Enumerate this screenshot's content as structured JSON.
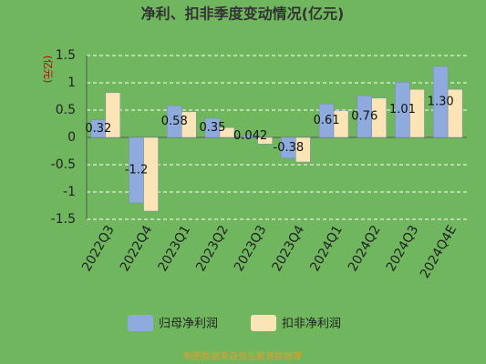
{
  "chart_data": {
    "type": "bar",
    "title": "净利、扣非季度变动情况(亿元)",
    "y_label": "(亿元)",
    "categories": [
      "2022Q3",
      "2022Q4",
      "2023Q1",
      "2023Q2",
      "2023Q3",
      "2023Q4",
      "2024Q1",
      "2024Q2",
      "2024Q3",
      "2024Q4E"
    ],
    "series": [
      {
        "name": "归母净利润",
        "color": "#8faadc",
        "values": [
          0.32,
          -1.2,
          0.58,
          0.35,
          0.042,
          -0.38,
          0.61,
          0.76,
          1.01,
          1.3
        ],
        "value_labels": [
          "0.32",
          "-1.2",
          "0.58",
          "0.35",
          "0.042",
          "-0.38",
          "0.61",
          "0.76",
          "1.01",
          "1.30"
        ]
      },
      {
        "name": "扣非净利润",
        "color": "#fbe5b6",
        "values": [
          0.82,
          -1.35,
          0.47,
          0.18,
          -0.12,
          -0.45,
          0.49,
          0.72,
          0.88,
          0.88
        ]
      }
    ],
    "ylim": [
      -1.5,
      1.5
    ],
    "yticks": [
      -1.5,
      -1,
      -0.5,
      0,
      0.5,
      1,
      1.5
    ],
    "grid": true,
    "footnote": "制图数据来自恒生聚源数据库"
  }
}
